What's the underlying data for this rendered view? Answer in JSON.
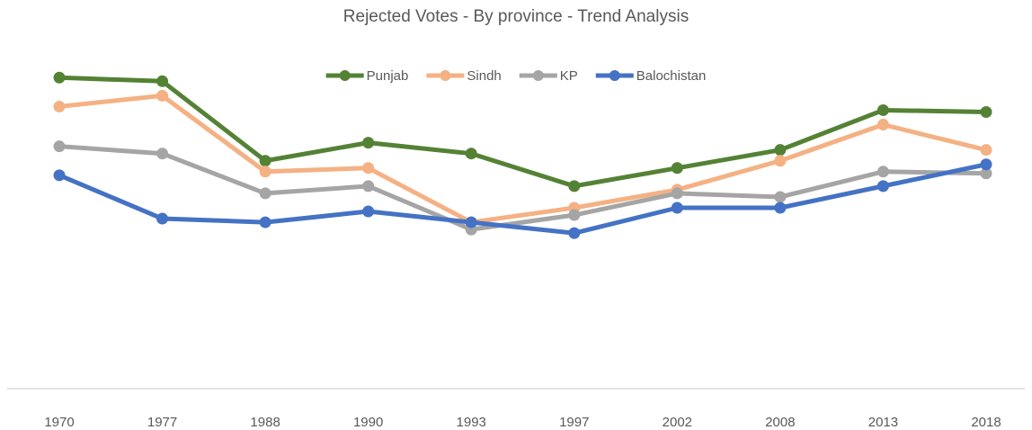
{
  "chart_data": {
    "type": "line",
    "title": "Rejected Votes - By province - Trend Analysis",
    "xlabel": "",
    "ylabel": "",
    "ylim": [
      0,
      100
    ],
    "grid": false,
    "legend_position": "top",
    "categories": [
      "1970",
      "1977",
      "1988",
      "1990",
      "1993",
      "1997",
      "2002",
      "2008",
      "2013",
      "2018"
    ],
    "series": [
      {
        "name": "Punjab",
        "color": "#548235",
        "values": [
          86,
          85,
          63,
          68,
          65,
          56,
          61,
          66,
          77,
          76.5
        ]
      },
      {
        "name": "Sindh",
        "color": "#F4B183",
        "values": [
          78,
          81,
          60,
          61,
          46,
          50,
          55,
          63,
          73,
          66
        ]
      },
      {
        "name": "KP",
        "color": "#A5A5A5",
        "values": [
          67,
          65,
          54,
          56,
          44,
          48,
          54,
          53,
          60,
          59.5
        ]
      },
      {
        "name": "Balochistan",
        "color": "#4472C4",
        "values": [
          59,
          47,
          46,
          49,
          46,
          43,
          50,
          50,
          56,
          62
        ]
      }
    ]
  }
}
